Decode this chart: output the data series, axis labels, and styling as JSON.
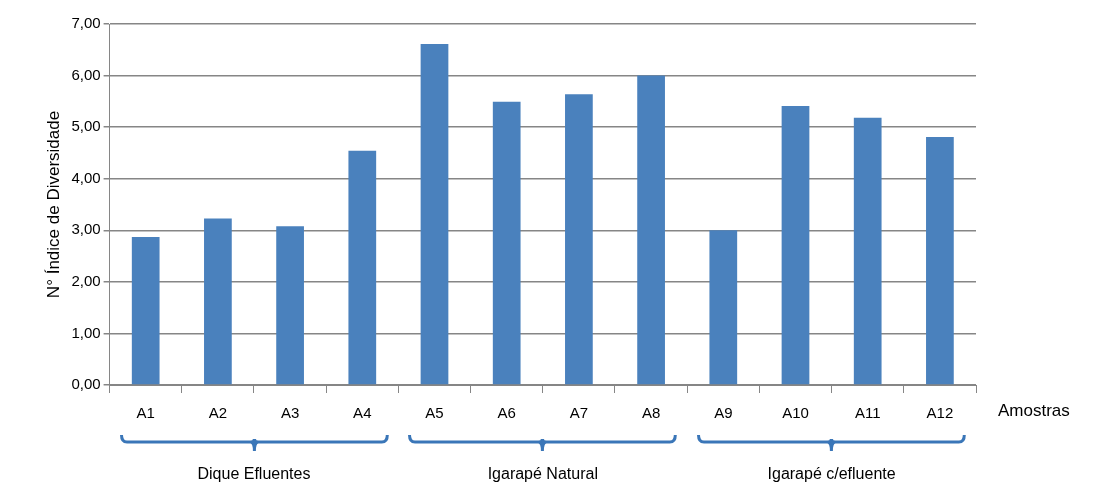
{
  "chart_data": {
    "type": "bar",
    "xlabel": "Amostras",
    "ylabel": "N° Índice de Diversidade",
    "categories": [
      "A1",
      "A2",
      "A3",
      "A4",
      "A5",
      "A6",
      "A7",
      "A8",
      "A9",
      "A10",
      "A11",
      "A12"
    ],
    "values": [
      2.87,
      3.23,
      3.08,
      4.54,
      6.61,
      5.49,
      5.64,
      6.0,
      3.0,
      5.41,
      5.18,
      4.81
    ],
    "color": "#4a81bd",
    "ylim": [
      0,
      7
    ],
    "yticks": [
      {
        "value": 0,
        "label": "0,00"
      },
      {
        "value": 1,
        "label": "1,00"
      },
      {
        "value": 2,
        "label": "2,00"
      },
      {
        "value": 3,
        "label": "3,00"
      },
      {
        "value": 4,
        "label": "4,00"
      },
      {
        "value": 5,
        "label": "5,00"
      },
      {
        "value": 6,
        "label": "6,00"
      },
      {
        "value": 7,
        "label": "7,00"
      }
    ],
    "grid": "y",
    "annotations": [
      "Dique Efluentes",
      "Igarapé Natural",
      "Igarapé c/efluente"
    ]
  }
}
